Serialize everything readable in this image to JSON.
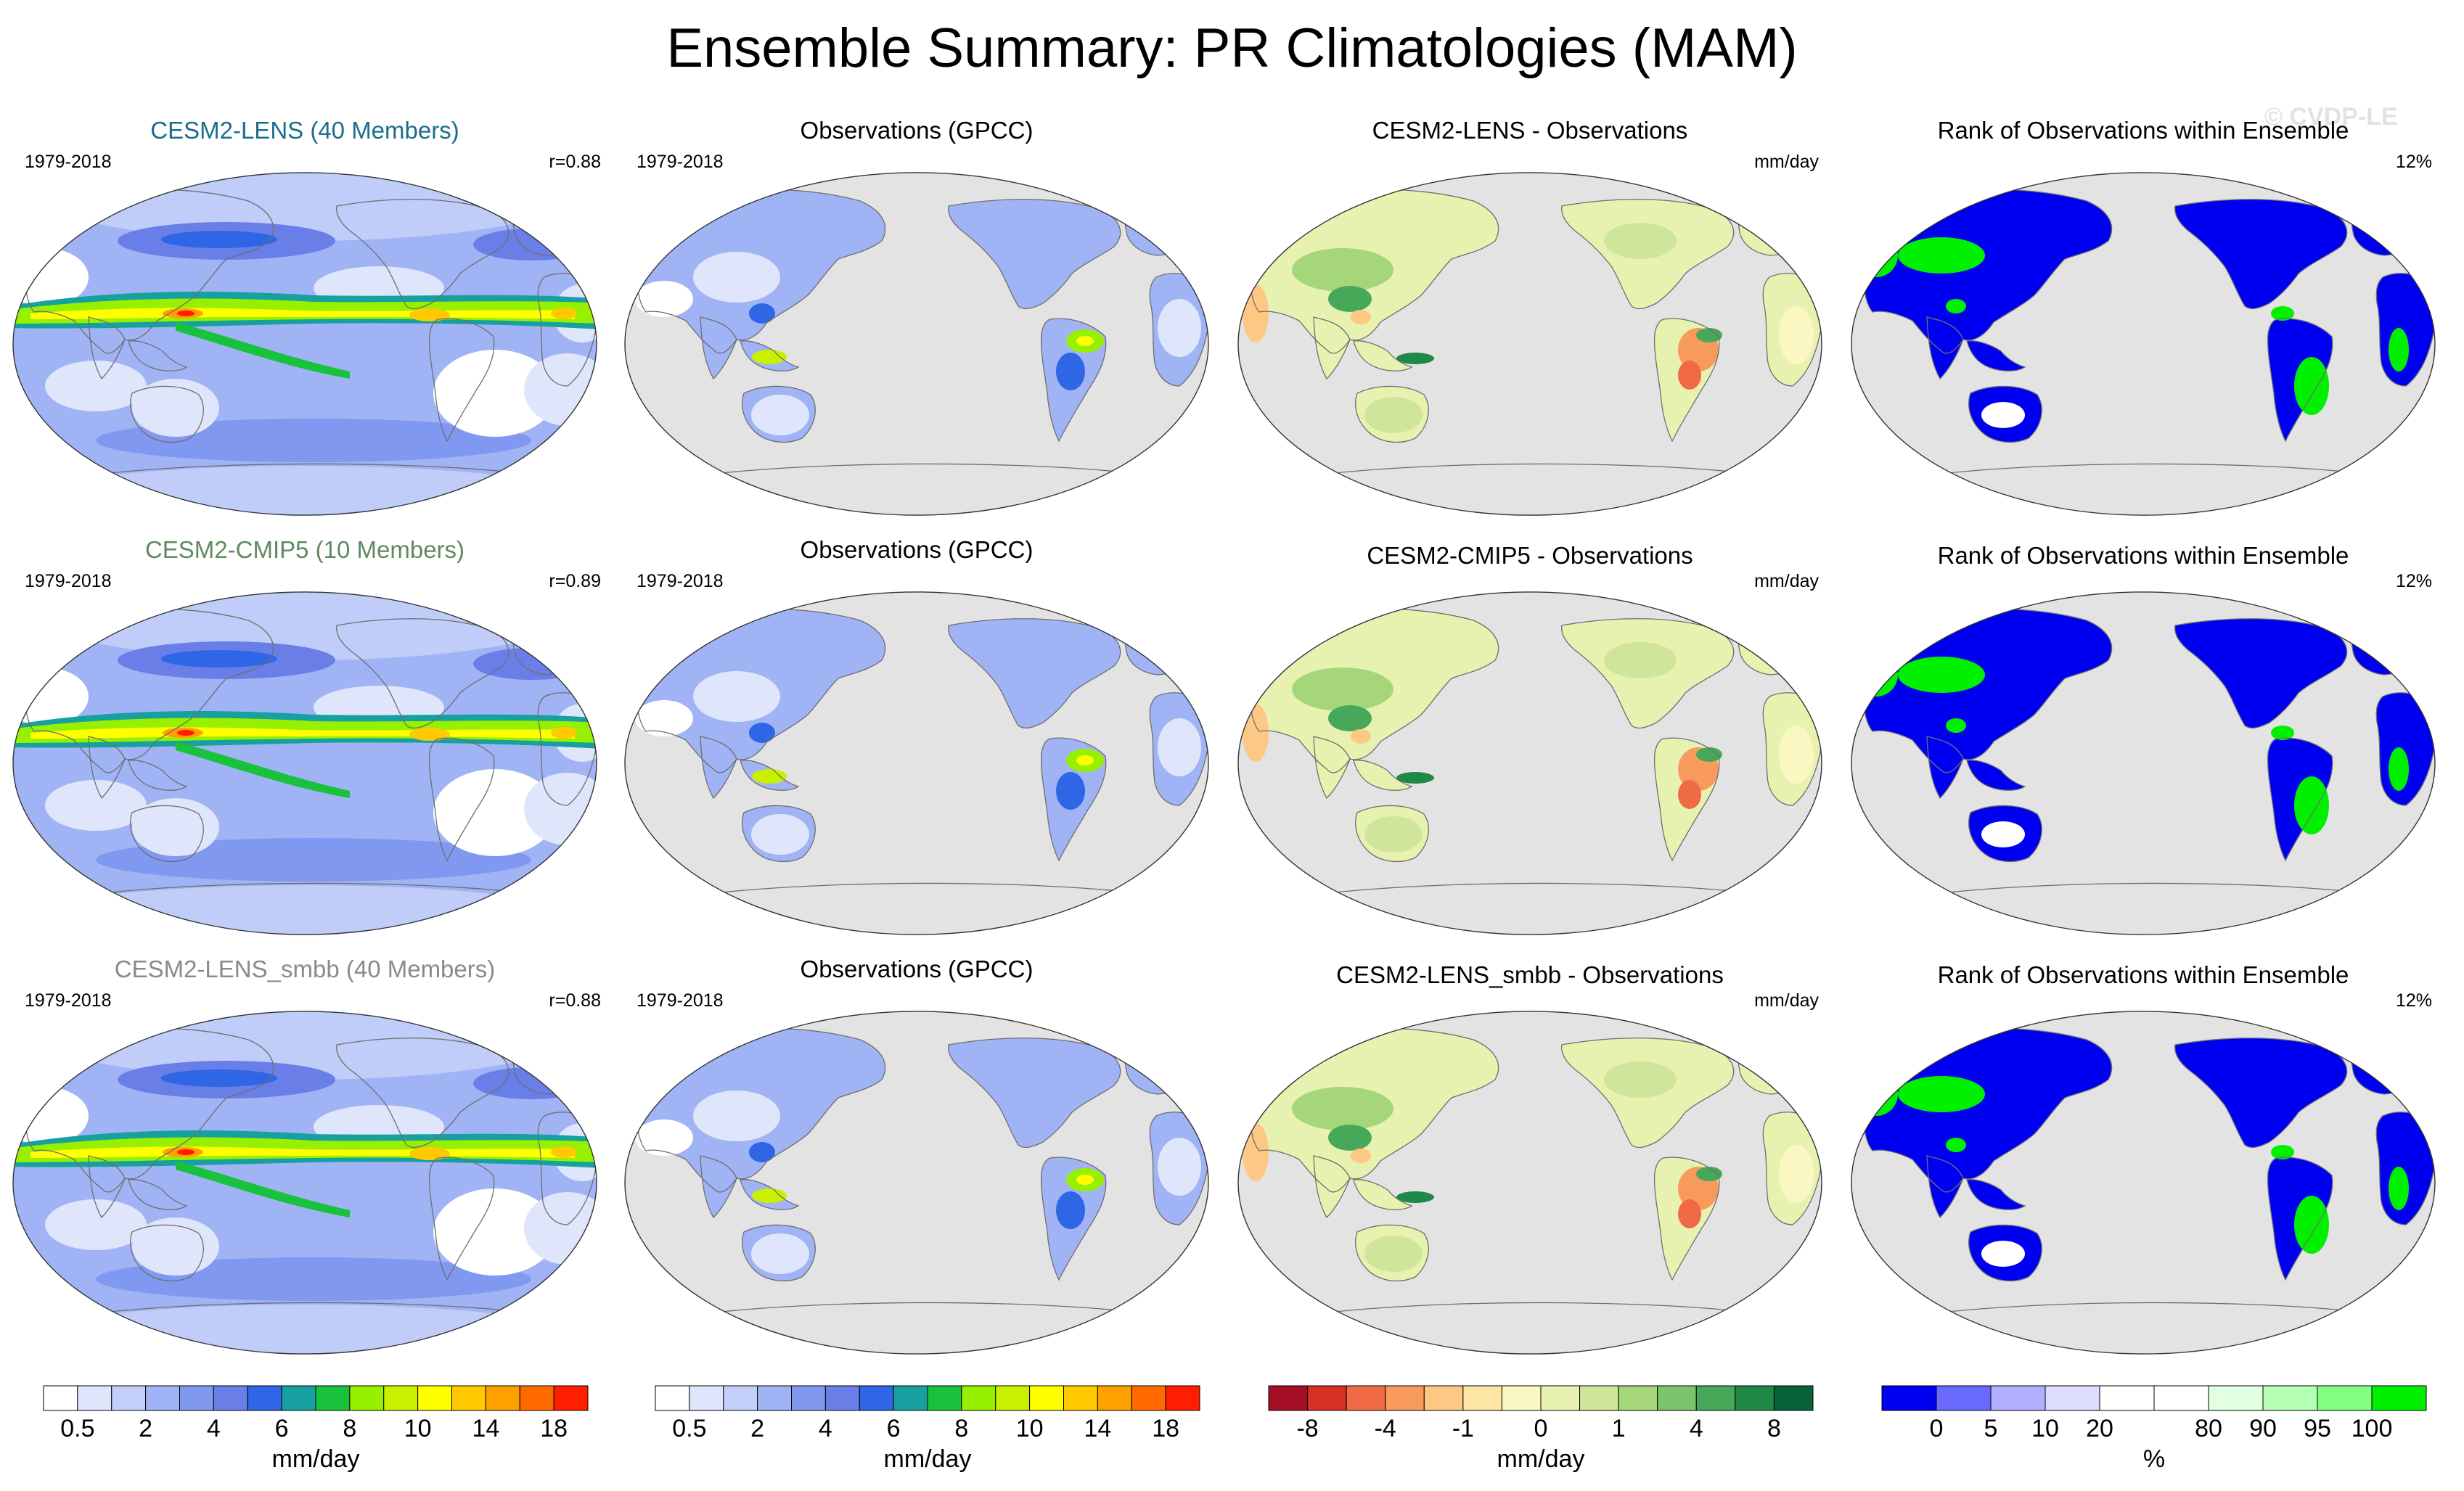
{
  "title": "Ensemble Summary: PR Climatologies (MAM)",
  "watermark": "© CVDP-LE",
  "rows": [
    {
      "model": {
        "title": "CESM2-LENS (40 Members)",
        "title_color": "#1a6e8a",
        "years": "1979-2018",
        "corr": "r=0.88"
      },
      "obs": {
        "title": "Observations (GPCC)",
        "years": "1979-2018"
      },
      "diff": {
        "title": "CESM2-LENS - Observations",
        "units": "mm/day"
      },
      "rank": {
        "title": "Rank of Observations within Ensemble",
        "percent": "12%"
      }
    },
    {
      "model": {
        "title": "CESM2-CMIP5 (10 Members)",
        "title_color": "#5f8a5f",
        "years": "1979-2018",
        "corr": "r=0.89"
      },
      "obs": {
        "title": "Observations (GPCC)",
        "years": "1979-2018"
      },
      "diff": {
        "title": "CESM2-CMIP5 - Observations",
        "units": "mm/day"
      },
      "rank": {
        "title": "Rank of Observations within Ensemble",
        "percent": "12%"
      }
    },
    {
      "model": {
        "title": "CESM2-LENS_smbb (40 Members)",
        "title_color": "#8a8a8a",
        "years": "1979-2018",
        "corr": "r=0.88"
      },
      "obs": {
        "title": "Observations (GPCC)",
        "years": "1979-2018"
      },
      "diff": {
        "title": "CESM2-LENS_smbb - Observations",
        "units": "mm/day"
      },
      "rank": {
        "title": "Rank of Observations within Ensemble",
        "percent": "12%"
      }
    }
  ],
  "chart_data": {
    "type": "heatmap",
    "panel_types": [
      "model-precipitation",
      "observed-precipitation",
      "model-minus-observations",
      "rank-of-observations"
    ],
    "colorbars": [
      {
        "id": "model-pr",
        "units": "mm/day",
        "tick_labels": [
          "0.5",
          "2",
          "4",
          "6",
          "8",
          "10",
          "14",
          "18"
        ],
        "tick_boxes": [
          1,
          3,
          5,
          7,
          9,
          11,
          13,
          15
        ],
        "colors": [
          "#ffffff",
          "#dfe6fb",
          "#c2cff8",
          "#a0b3f4",
          "#8098f0",
          "#6a7ee8",
          "#2e66e6",
          "#16a0a0",
          "#18c23c",
          "#96f000",
          "#c8f000",
          "#ffff00",
          "#ffc800",
          "#ffa000",
          "#ff6a00",
          "#ff1e00"
        ]
      },
      {
        "id": "obs-pr",
        "units": "mm/day",
        "tick_labels": [
          "0.5",
          "2",
          "4",
          "6",
          "8",
          "10",
          "14",
          "18"
        ],
        "tick_boxes": [
          1,
          3,
          5,
          7,
          9,
          11,
          13,
          15
        ],
        "colors": [
          "#ffffff",
          "#dfe6fb",
          "#c2cff8",
          "#a0b3f4",
          "#8098f0",
          "#6a7ee8",
          "#2e66e6",
          "#16a0a0",
          "#18c23c",
          "#96f000",
          "#c8f000",
          "#ffff00",
          "#ffc800",
          "#ffa000",
          "#ff6a00",
          "#ff1e00"
        ]
      },
      {
        "id": "diff-pr",
        "units": "mm/day",
        "tick_labels": [
          "-8",
          "-4",
          "-1",
          "0",
          "1",
          "4",
          "8"
        ],
        "tick_boxes": [
          1,
          3,
          5,
          7,
          9,
          11,
          13
        ],
        "colors": [
          "#a50f26",
          "#d73027",
          "#ef6a45",
          "#f99a5d",
          "#fdc784",
          "#fde6a3",
          "#fbf7c2",
          "#e8f2b0",
          "#cfe69a",
          "#a6d67a",
          "#7cc36b",
          "#48a85a",
          "#1f8a48",
          "#0a6238"
        ]
      },
      {
        "id": "rank",
        "units": "%",
        "tick_labels": [
          "0",
          "5",
          "10",
          "20",
          "80",
          "90",
          "95",
          "100"
        ],
        "tick_boxes": [
          1,
          2,
          3,
          4,
          6,
          7,
          8,
          9
        ],
        "colors": [
          "#0000f0",
          "#6a6aff",
          "#b0b0ff",
          "#dcdcff",
          "#ffffff",
          "#ffffff",
          "#e2ffe2",
          "#b4ffb4",
          "#80ff80",
          "#00f000"
        ]
      }
    ]
  }
}
